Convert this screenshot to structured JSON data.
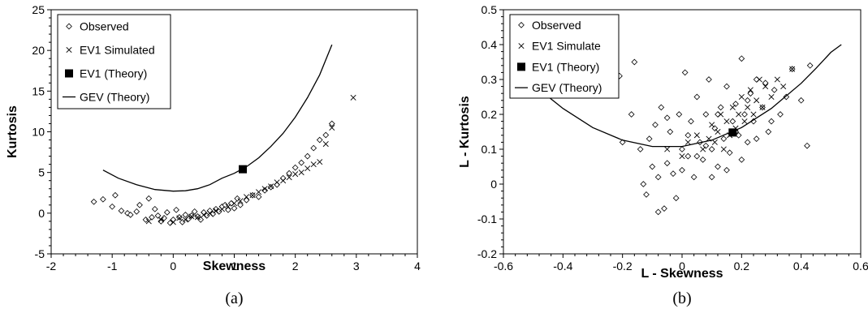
{
  "chart_data": [
    {
      "type": "scatter",
      "caption": "(a)",
      "xlabel": "Skewness",
      "ylabel": "Kurtosis",
      "xlim": [
        -2,
        4
      ],
      "ylim": [
        -5,
        25
      ],
      "xticks": [
        -2,
        -1,
        0,
        1,
        2,
        3,
        4
      ],
      "yticks": [
        -5,
        0,
        5,
        10,
        15,
        20,
        25
      ],
      "legend_position": "top-left",
      "grid": false,
      "legend": [
        "Observed",
        "EV1 Simulated",
        "EV1 (Theory)",
        "GEV (Theory)"
      ],
      "series": [
        {
          "marker": "diamond",
          "x": [
            -1.3,
            -1.15,
            -1.0,
            -0.95,
            -0.85,
            -0.75,
            -0.7,
            -0.6,
            -0.55,
            -0.45,
            -0.4,
            -0.35,
            -0.3,
            -0.25,
            -0.2,
            -0.15,
            -0.1,
            -0.05,
            0.0,
            0.05,
            0.1,
            0.15,
            0.2,
            0.25,
            0.3,
            0.35,
            0.4,
            0.45,
            0.5,
            0.55,
            0.6,
            0.65,
            0.7,
            0.75,
            0.8,
            0.85,
            0.9,
            0.95,
            1.0,
            1.05,
            1.1,
            1.2,
            1.3,
            1.4,
            1.5,
            1.6,
            1.7,
            1.8,
            1.9,
            2.0,
            2.1,
            2.2,
            2.3,
            2.4,
            2.5,
            2.6
          ],
          "y": [
            1.4,
            1.7,
            0.8,
            2.2,
            0.3,
            0.0,
            -0.2,
            0.2,
            1.0,
            -0.8,
            1.8,
            -0.5,
            0.5,
            -0.3,
            -1.0,
            -0.6,
            0.1,
            -1.2,
            -0.8,
            0.4,
            -0.5,
            -1.1,
            -0.2,
            -0.7,
            -0.3,
            0.2,
            -0.4,
            -0.8,
            0.1,
            -0.3,
            0.3,
            -0.1,
            0.5,
            0.2,
            0.8,
            1.0,
            0.4,
            1.2,
            0.6,
            1.8,
            1.0,
            1.6,
            2.2,
            2.0,
            2.8,
            3.2,
            3.5,
            4.3,
            4.9,
            5.6,
            6.2,
            7.0,
            8.0,
            9.0,
            9.6,
            11.0
          ]
        },
        {
          "marker": "x",
          "x": [
            -0.4,
            -0.2,
            0.0,
            0.1,
            0.2,
            0.3,
            0.4,
            0.5,
            0.6,
            0.7,
            0.8,
            0.9,
            1.0,
            1.1,
            1.2,
            1.3,
            1.4,
            1.5,
            1.6,
            1.7,
            1.8,
            1.9,
            2.0,
            2.1,
            2.2,
            2.3,
            2.4,
            2.5,
            2.6,
            2.95
          ],
          "y": [
            -1.0,
            -0.8,
            -1.1,
            -0.6,
            -0.8,
            -0.4,
            -0.5,
            -0.2,
            0.0,
            0.3,
            0.5,
            0.8,
            1.2,
            1.5,
            2.0,
            2.2,
            2.6,
            3.0,
            3.3,
            3.8,
            4.0,
            4.4,
            4.8,
            5.0,
            5.5,
            6.0,
            6.3,
            8.5,
            10.5,
            14.2
          ]
        },
        {
          "marker": "square",
          "x": [
            1.14
          ],
          "y": [
            5.4
          ]
        },
        {
          "marker": "line",
          "x": [
            -1.15,
            -0.9,
            -0.6,
            -0.3,
            0.0,
            0.2,
            0.4,
            0.6,
            0.8,
            1.0,
            1.2,
            1.4,
            1.6,
            1.8,
            2.0,
            2.2,
            2.4,
            2.6
          ],
          "y": [
            5.3,
            4.3,
            3.5,
            2.9,
            2.7,
            2.75,
            3.0,
            3.5,
            4.3,
            4.9,
            5.7,
            6.8,
            8.2,
            9.8,
            11.8,
            14.2,
            17.0,
            20.7
          ]
        }
      ]
    },
    {
      "type": "scatter",
      "caption": "(b)",
      "xlabel": "L - Skewness",
      "ylabel": "L - Kurtosis",
      "xlim": [
        -0.6,
        0.6
      ],
      "ylim": [
        -0.2,
        0.5
      ],
      "xticks": [
        -0.6,
        -0.4,
        -0.2,
        0,
        0.2,
        0.4,
        0.6
      ],
      "yticks": [
        -0.2,
        -0.1,
        0,
        0.1,
        0.2,
        0.3,
        0.4,
        0.5
      ],
      "legend_position": "top-left",
      "grid": false,
      "legend": [
        "Observed",
        "EV1 Simulate",
        "EV1 (Theory)",
        "GEV (Theory)"
      ],
      "series": [
        {
          "marker": "diamond",
          "x": [
            -0.21,
            -0.2,
            -0.17,
            -0.16,
            -0.14,
            -0.13,
            -0.12,
            -0.11,
            -0.1,
            -0.09,
            -0.08,
            -0.07,
            -0.06,
            -0.05,
            -0.04,
            -0.03,
            -0.02,
            -0.01,
            0.0,
            0.01,
            0.02,
            0.03,
            0.04,
            0.05,
            0.06,
            0.07,
            0.08,
            0.09,
            0.1,
            0.11,
            0.12,
            0.13,
            0.14,
            0.15,
            0.16,
            0.17,
            0.18,
            0.19,
            0.2,
            0.21,
            0.22,
            0.23,
            0.24,
            0.25,
            0.27,
            0.29,
            0.31,
            0.33,
            0.35,
            0.37,
            0.4,
            0.42,
            0.43,
            -0.08,
            -0.05,
            0.0,
            0.02,
            0.05,
            0.08,
            0.1,
            0.12,
            0.15,
            0.18,
            0.2,
            0.22,
            0.25,
            0.28,
            0.3
          ],
          "y": [
            0.31,
            0.12,
            0.2,
            0.35,
            0.1,
            0.0,
            -0.03,
            0.13,
            0.05,
            0.17,
            -0.08,
            0.22,
            -0.07,
            0.06,
            0.15,
            0.03,
            -0.04,
            0.2,
            0.1,
            0.32,
            0.08,
            0.18,
            0.02,
            0.25,
            0.12,
            0.07,
            0.2,
            0.3,
            0.1,
            0.16,
            0.05,
            0.22,
            0.13,
            0.28,
            0.09,
            0.18,
            0.23,
            0.14,
            0.36,
            0.2,
            0.12,
            0.26,
            0.18,
            0.3,
            0.22,
            0.15,
            0.27,
            0.2,
            0.25,
            0.33,
            0.24,
            0.11,
            0.34,
            0.02,
            0.19,
            0.04,
            0.14,
            0.08,
            0.11,
            0.02,
            0.2,
            0.04,
            0.15,
            0.07,
            0.24,
            0.13,
            0.29,
            0.18
          ]
        },
        {
          "marker": "x",
          "x": [
            -0.05,
            0.0,
            0.02,
            0.05,
            0.07,
            0.09,
            0.1,
            0.11,
            0.12,
            0.13,
            0.14,
            0.15,
            0.16,
            0.17,
            0.18,
            0.19,
            0.2,
            0.21,
            0.22,
            0.23,
            0.24,
            0.25,
            0.26,
            0.27,
            0.28,
            0.3,
            0.32,
            0.34,
            0.37
          ],
          "y": [
            0.1,
            0.08,
            0.12,
            0.14,
            0.1,
            0.13,
            0.17,
            0.12,
            0.15,
            0.2,
            0.1,
            0.18,
            0.14,
            0.22,
            0.16,
            0.2,
            0.25,
            0.18,
            0.22,
            0.27,
            0.2,
            0.24,
            0.3,
            0.22,
            0.28,
            0.25,
            0.3,
            0.28,
            0.33
          ]
        },
        {
          "marker": "square",
          "x": [
            0.17
          ],
          "y": [
            0.148
          ]
        },
        {
          "marker": "line",
          "x": [
            -0.46,
            -0.4,
            -0.3,
            -0.2,
            -0.1,
            0.0,
            0.1,
            0.2,
            0.3,
            0.4,
            0.45,
            0.5,
            0.535
          ],
          "y": [
            0.258,
            0.217,
            0.162,
            0.126,
            0.108,
            0.108,
            0.126,
            0.162,
            0.217,
            0.289,
            0.332,
            0.378,
            0.4
          ]
        }
      ]
    }
  ]
}
